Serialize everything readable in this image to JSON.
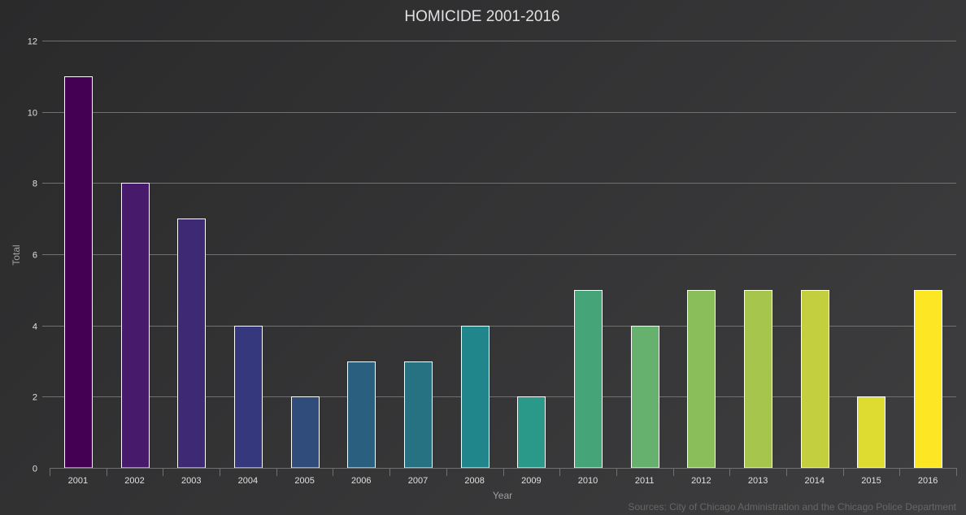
{
  "chart_data": {
    "type": "bar",
    "title": "HOMICIDE 2001-2016",
    "xlabel": "Year",
    "ylabel": "Total",
    "categories": [
      "2001",
      "2002",
      "2003",
      "2004",
      "2005",
      "2006",
      "2007",
      "2008",
      "2009",
      "2010",
      "2011",
      "2012",
      "2013",
      "2014",
      "2015",
      "2016"
    ],
    "values": [
      11,
      8,
      7,
      4,
      2,
      3,
      3,
      4,
      2,
      5,
      4,
      5,
      5,
      5,
      2,
      5
    ],
    "ylim": [
      0,
      12
    ],
    "yticks": [
      0,
      2,
      4,
      6,
      8,
      10,
      12
    ],
    "grid": true,
    "legend": "none",
    "bar_colors": [
      "#440154",
      "#481a6c",
      "#3e2a74",
      "#35387c",
      "#2f4c7b",
      "#2b5f80",
      "#277282",
      "#21868c",
      "#2b998a",
      "#45a579",
      "#67b16e",
      "#8abe5a",
      "#a5c54c",
      "#c3cf3e",
      "#dedc30",
      "#fde725"
    ],
    "credits": "Sources: City of Chicago Administration and the Chicago Police Department"
  },
  "colors": {
    "background": "#2a2a2b",
    "title": "#e0e0e3",
    "axis_text": "#a0a0a3",
    "gridline": "#707073"
  }
}
